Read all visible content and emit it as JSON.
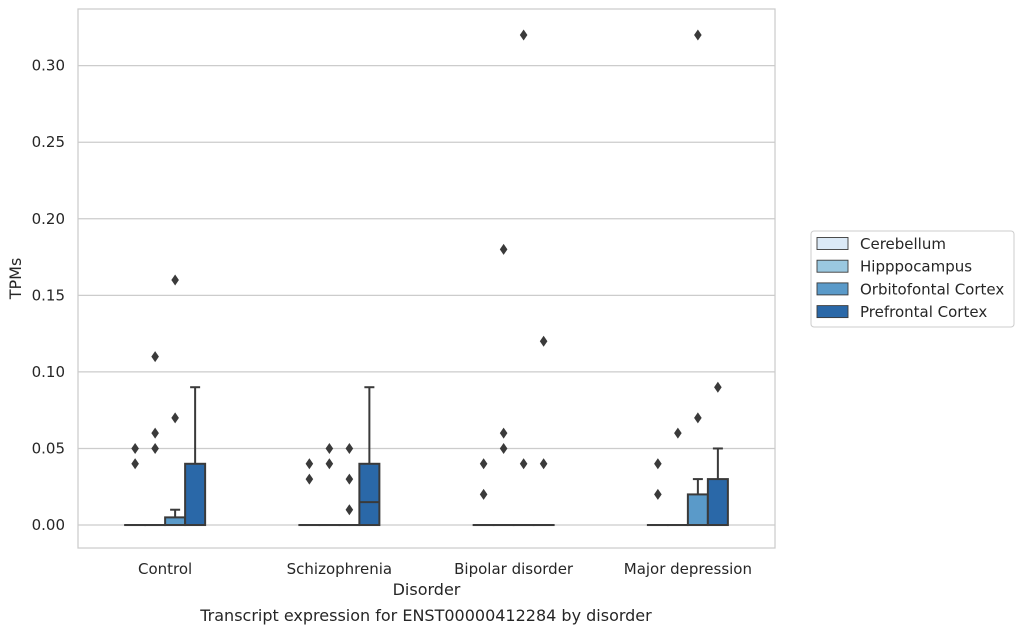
{
  "chart_data": {
    "type": "box",
    "xlabel": "Disorder",
    "ylabel": "TPMs",
    "caption": "Transcript expression for ENST00000412284 by disorder",
    "ylim": [
      -0.015,
      0.337
    ],
    "yticks": [
      "0.00",
      "0.05",
      "0.10",
      "0.15",
      "0.20",
      "0.25",
      "0.30"
    ],
    "ytick_values": [
      0,
      0.05,
      0.1,
      0.15,
      0.2,
      0.25,
      0.3
    ],
    "grid": "horizontal",
    "legend_position": "right",
    "categories": [
      "Control",
      "Schizophrenia",
      "Bipolar disorder",
      "Major depression"
    ],
    "series": [
      {
        "name": "Cerebellum",
        "color": "#dbe9f6",
        "boxes": [
          {
            "q1": 0,
            "median": 0,
            "q3": 0,
            "whisker_low": 0,
            "whisker_high": 0,
            "outliers": [
              0.04,
              0.05
            ]
          },
          {
            "q1": 0,
            "median": 0,
            "q3": 0,
            "whisker_low": 0,
            "whisker_high": 0,
            "outliers": [
              0.03,
              0.04
            ]
          },
          {
            "q1": 0,
            "median": 0,
            "q3": 0,
            "whisker_low": 0,
            "whisker_high": 0,
            "outliers": [
              0.02,
              0.04
            ]
          },
          {
            "q1": 0,
            "median": 0,
            "q3": 0,
            "whisker_low": 0,
            "whisker_high": 0,
            "outliers": [
              0.02,
              0.04
            ]
          }
        ]
      },
      {
        "name": "Hipppocampus",
        "color": "#9ac8e0",
        "boxes": [
          {
            "q1": 0,
            "median": 0,
            "q3": 0,
            "whisker_low": 0,
            "whisker_high": 0,
            "outliers": [
              0.05,
              0.06,
              0.11
            ]
          },
          {
            "q1": 0,
            "median": 0,
            "q3": 0,
            "whisker_low": 0,
            "whisker_high": 0,
            "outliers": [
              0.04,
              0.05
            ]
          },
          {
            "q1": 0,
            "median": 0,
            "q3": 0,
            "whisker_low": 0,
            "whisker_high": 0,
            "outliers": [
              0.05,
              0.06,
              0.18
            ]
          },
          {
            "q1": 0,
            "median": 0,
            "q3": 0,
            "whisker_low": 0,
            "whisker_high": 0,
            "outliers": [
              0.06
            ]
          }
        ]
      },
      {
        "name": "Orbitofontal Cortex",
        "color": "#5a9ac9",
        "boxes": [
          {
            "q1": 0,
            "median": 0,
            "q3": 0.005,
            "whisker_low": 0,
            "whisker_high": 0.01,
            "outliers": [
              0.07,
              0.16
            ]
          },
          {
            "q1": 0,
            "median": 0,
            "q3": 0,
            "whisker_low": 0,
            "whisker_high": 0,
            "outliers": [
              0.01,
              0.03,
              0.05
            ]
          },
          {
            "q1": 0,
            "median": 0,
            "q3": 0,
            "whisker_low": 0,
            "whisker_high": 0,
            "outliers": [
              0.04,
              0.32
            ]
          },
          {
            "q1": 0,
            "median": 0,
            "q3": 0.02,
            "whisker_low": 0,
            "whisker_high": 0.03,
            "outliers": [
              0.07,
              0.32
            ]
          }
        ]
      },
      {
        "name": "Prefrontal Cortex",
        "color": "#2a68a8",
        "boxes": [
          {
            "q1": 0,
            "median": 0,
            "q3": 0.04,
            "whisker_low": 0,
            "whisker_high": 0.09,
            "outliers": []
          },
          {
            "q1": 0,
            "median": 0.015,
            "q3": 0.04,
            "whisker_low": 0,
            "whisker_high": 0.09,
            "outliers": []
          },
          {
            "q1": 0,
            "median": 0,
            "q3": 0,
            "whisker_low": 0,
            "whisker_high": 0,
            "outliers": [
              0.04,
              0.12
            ]
          },
          {
            "q1": 0,
            "median": 0,
            "q3": 0.03,
            "whisker_low": 0,
            "whisker_high": 0.05,
            "outliers": [
              0.09
            ]
          }
        ]
      }
    ]
  }
}
